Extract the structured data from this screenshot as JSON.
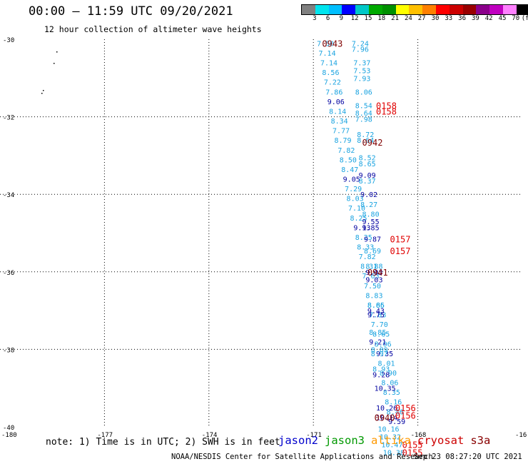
{
  "header": {
    "title": "00:00 – 11:59 UTC 09/20/2021",
    "subtitle": "12 hour collection of altimeter wave heights"
  },
  "colorbar": {
    "colors": [
      "#808080",
      "#00e5ee",
      "#00bfff",
      "#0000ff",
      "#00c8c8",
      "#00aa00",
      "#009000",
      "#ffff00",
      "#ffc000",
      "#ff8000",
      "#ff0000",
      "#cc0000",
      "#990000",
      "#8b008b",
      "#c000c0",
      "#ff80ff",
      "#000000"
    ],
    "labels": [
      "3",
      "6",
      "9",
      "12",
      "15",
      "18",
      "21",
      "24",
      "27",
      "30",
      "33",
      "36",
      "39",
      "42",
      "45",
      "70",
      "(ft)"
    ]
  },
  "footer": {
    "note": "note: 1) Time is in UTC; 2) SWH is in feet",
    "satellites": [
      {
        "name": "jason2",
        "color": "#0000cc"
      },
      {
        "name": "jason3",
        "color": "#009900"
      },
      {
        "name": "altika",
        "color": "#ff9900"
      },
      {
        "name": "cryosat",
        "color": "#cc0000"
      },
      {
        "name": "s3a",
        "color": "#880000"
      }
    ],
    "credit": "NOAA/NESDIS Center for Satellite Applications and Research",
    "timestamp": "Sep 23 08:27:20 UTC 2021"
  },
  "chart_data": {
    "type": "scatter",
    "title": "00:00 – 11:59 UTC 09/20/2021",
    "xlim": [
      -180,
      -165
    ],
    "ylim": [
      -40,
      -30
    ],
    "xticks": [
      "-180",
      "-177",
      "-174",
      "-171",
      "-168",
      "-16"
    ],
    "yticks": [
      "-30",
      "-32",
      "-34",
      "-36",
      "-38",
      "-40"
    ],
    "grid": true,
    "colors": {
      "light": "#1aa3e0",
      "dark": "#0000a0",
      "time_red": "#e00000",
      "time_dark": "#800000"
    },
    "track_a": [
      {
        "lon": -170.9,
        "lat": -30.1,
        "v": "7.50",
        "c": "light"
      },
      {
        "lon": -170.85,
        "lat": -30.35,
        "v": "7.14",
        "c": "light"
      },
      {
        "lon": -170.8,
        "lat": -30.6,
        "v": "7.14",
        "c": "light"
      },
      {
        "lon": -170.75,
        "lat": -30.85,
        "v": "8.56",
        "c": "light"
      },
      {
        "lon": -170.7,
        "lat": -31.1,
        "v": "7.22",
        "c": "light"
      },
      {
        "lon": -170.65,
        "lat": -31.35,
        "v": "7.86",
        "c": "light"
      },
      {
        "lon": -170.6,
        "lat": -31.6,
        "v": "9.06",
        "c": "dark"
      },
      {
        "lon": -170.55,
        "lat": -31.85,
        "v": "8.14",
        "c": "light"
      },
      {
        "lon": -170.5,
        "lat": -32.1,
        "v": "8.34",
        "c": "light"
      },
      {
        "lon": -170.45,
        "lat": -32.35,
        "v": "7.77",
        "c": "light"
      },
      {
        "lon": -170.4,
        "lat": -32.6,
        "v": "8.79",
        "c": "light"
      },
      {
        "lon": -170.3,
        "lat": -32.85,
        "v": "7.82",
        "c": "light"
      },
      {
        "lon": -170.25,
        "lat": -33.1,
        "v": "8.50",
        "c": "light"
      },
      {
        "lon": -170.2,
        "lat": -33.35,
        "v": "8.47",
        "c": "light"
      },
      {
        "lon": -170.15,
        "lat": -33.6,
        "v": "9.05",
        "c": "dark"
      },
      {
        "lon": -170.1,
        "lat": -33.85,
        "v": "7.29",
        "c": "light"
      },
      {
        "lon": -170.05,
        "lat": -34.1,
        "v": "8.03",
        "c": "light"
      },
      {
        "lon": -170.0,
        "lat": -34.35,
        "v": "7.10",
        "c": "light"
      },
      {
        "lon": -169.95,
        "lat": -34.6,
        "v": "8.25",
        "c": "light"
      },
      {
        "lon": -169.85,
        "lat": -34.85,
        "v": "9.13",
        "c": "dark"
      },
      {
        "lon": -169.8,
        "lat": -35.1,
        "v": "8.25",
        "c": "light"
      },
      {
        "lon": -169.75,
        "lat": -35.35,
        "v": "8.33",
        "c": "light"
      },
      {
        "lon": -169.7,
        "lat": -35.6,
        "v": "7.82",
        "c": "light"
      },
      {
        "lon": -169.65,
        "lat": -35.85,
        "v": "8.31",
        "c": "light"
      },
      {
        "lon": -169.6,
        "lat": -36.1,
        "v": "7.63",
        "c": "light"
      },
      {
        "lon": -169.55,
        "lat": -36.35,
        "v": "7.50",
        "c": "light"
      },
      {
        "lon": -169.5,
        "lat": -36.6,
        "v": "8.83",
        "c": "light"
      },
      {
        "lon": -169.45,
        "lat": -36.85,
        "v": "8.66",
        "c": "light"
      },
      {
        "lon": -169.4,
        "lat": -37.1,
        "v": "7.83",
        "c": "light"
      },
      {
        "lon": -169.35,
        "lat": -37.35,
        "v": "7.70",
        "c": "light"
      },
      {
        "lon": -169.3,
        "lat": -37.6,
        "v": "8.65",
        "c": "light"
      },
      {
        "lon": -169.25,
        "lat": -37.85,
        "v": "8.06",
        "c": "light"
      },
      {
        "lon": -169.2,
        "lat": -38.1,
        "v": "9.35",
        "c": "dark"
      },
      {
        "lon": -169.15,
        "lat": -38.35,
        "v": "8.01",
        "c": "light"
      },
      {
        "lon": -169.1,
        "lat": -38.6,
        "v": "8.90",
        "c": "light"
      },
      {
        "lon": -169.05,
        "lat": -38.85,
        "v": "8.06",
        "c": "light"
      },
      {
        "lon": -169.0,
        "lat": -39.1,
        "v": "8.35",
        "c": "light"
      },
      {
        "lon": -168.95,
        "lat": -39.35,
        "v": "8.16",
        "c": "light"
      },
      {
        "lon": -168.9,
        "lat": -39.6,
        "v": "8.46",
        "c": "light"
      },
      {
        "lon": -168.85,
        "lat": -39.85,
        "v": "9.59",
        "c": "dark"
      }
    ],
    "track_b": [
      {
        "lon": -169.9,
        "lat": -30.1,
        "v": "7.24",
        "c": "light"
      },
      {
        "lon": -169.9,
        "lat": -30.25,
        "v": "7.96",
        "c": "light"
      },
      {
        "lon": -169.85,
        "lat": -30.6,
        "v": "7.37",
        "c": "light"
      },
      {
        "lon": -169.85,
        "lat": -30.8,
        "v": "7.53",
        "c": "light"
      },
      {
        "lon": -169.85,
        "lat": -31.0,
        "v": "7.93",
        "c": "light"
      },
      {
        "lon": -169.8,
        "lat": -31.35,
        "v": "8.06",
        "c": "light"
      },
      {
        "lon": -169.8,
        "lat": -31.7,
        "v": "8.54",
        "c": "light"
      },
      {
        "lon": -169.8,
        "lat": -31.9,
        "v": "8.64",
        "c": "light"
      },
      {
        "lon": -169.8,
        "lat": -32.05,
        "v": "7.98",
        "c": "light"
      },
      {
        "lon": -169.75,
        "lat": -32.45,
        "v": "8.72",
        "c": "light"
      },
      {
        "lon": -169.75,
        "lat": -32.6,
        "v": "8.64",
        "c": "light"
      },
      {
        "lon": -169.7,
        "lat": -33.05,
        "v": "8.52",
        "c": "light"
      },
      {
        "lon": -169.7,
        "lat": -33.2,
        "v": "8.65",
        "c": "light"
      },
      {
        "lon": -169.7,
        "lat": -33.5,
        "v": "9.09",
        "c": "dark"
      },
      {
        "lon": -169.7,
        "lat": -33.65,
        "v": "8.37",
        "c": "light"
      },
      {
        "lon": -169.65,
        "lat": -34.0,
        "v": "9.02",
        "c": "dark"
      },
      {
        "lon": -169.65,
        "lat": -34.25,
        "v": "8.27",
        "c": "light"
      },
      {
        "lon": -169.6,
        "lat": -34.5,
        "v": "8.80",
        "c": "light"
      },
      {
        "lon": -169.6,
        "lat": -34.7,
        "v": "9.55",
        "c": "dark"
      },
      {
        "lon": -169.6,
        "lat": -34.85,
        "v": "9.85",
        "c": "dark"
      },
      {
        "lon": -169.55,
        "lat": -35.15,
        "v": "9.87",
        "c": "dark"
      },
      {
        "lon": -169.55,
        "lat": -35.45,
        "v": "8.69",
        "c": "light"
      },
      {
        "lon": -169.5,
        "lat": -35.85,
        "v": "8.88",
        "c": "light"
      },
      {
        "lon": -169.5,
        "lat": -36.0,
        "v": "9.03",
        "c": "dark"
      },
      {
        "lon": -169.5,
        "lat": -36.2,
        "v": "9.03",
        "c": "dark"
      },
      {
        "lon": -169.45,
        "lat": -36.85,
        "v": "8.85",
        "c": "light"
      },
      {
        "lon": -169.45,
        "lat": -37.0,
        "v": "9.43",
        "c": "dark"
      },
      {
        "lon": -169.45,
        "lat": -37.1,
        "v": "9.75",
        "c": "dark"
      },
      {
        "lon": -169.4,
        "lat": -37.55,
        "v": "8.85",
        "c": "light"
      },
      {
        "lon": -169.4,
        "lat": -37.8,
        "v": "9.21",
        "c": "dark"
      },
      {
        "lon": -169.35,
        "lat": -38.0,
        "v": "8.89",
        "c": "light"
      },
      {
        "lon": -169.35,
        "lat": -38.1,
        "v": "8.97",
        "c": "light"
      },
      {
        "lon": -169.3,
        "lat": -38.5,
        "v": "8.93",
        "c": "light"
      },
      {
        "lon": -169.3,
        "lat": -38.65,
        "v": "9.28",
        "c": "dark"
      },
      {
        "lon": -169.25,
        "lat": -39.0,
        "v": "10.35",
        "c": "dark"
      },
      {
        "lon": -169.2,
        "lat": -39.5,
        "v": "10.26",
        "c": "dark"
      },
      {
        "lon": -169.2,
        "lat": -39.75,
        "v": "10.14",
        "c": "dark"
      },
      {
        "lon": -169.15,
        "lat": -40.05,
        "v": "10.16",
        "c": "light"
      },
      {
        "lon": -169.1,
        "lat": -40.25,
        "v": "10.32",
        "c": "light"
      },
      {
        "lon": -169.05,
        "lat": -40.45,
        "v": "10.47",
        "c": "light"
      },
      {
        "lon": -169.0,
        "lat": -40.65,
        "v": "10.38",
        "c": "light"
      }
    ],
    "times": [
      {
        "lon": -170.75,
        "lat": -30.1,
        "t": "0943",
        "c": "time_dark"
      },
      {
        "lon": -169.6,
        "lat": -32.65,
        "t": "0942",
        "c": "time_dark"
      },
      {
        "lon": -169.45,
        "lat": -36.0,
        "t": "0941",
        "c": "time_dark"
      },
      {
        "lon": -169.25,
        "lat": -39.75,
        "t": "0940",
        "c": "time_dark"
      },
      {
        "lon": -169.2,
        "lat": -31.7,
        "t": "0158",
        "c": "time_red"
      },
      {
        "lon": -169.2,
        "lat": -31.85,
        "t": "0158",
        "c": "time_red"
      },
      {
        "lon": -168.8,
        "lat": -35.15,
        "t": "0157",
        "c": "time_red"
      },
      {
        "lon": -168.8,
        "lat": -35.45,
        "t": "0157",
        "c": "time_red"
      },
      {
        "lon": -168.65,
        "lat": -39.5,
        "t": "0156",
        "c": "time_red"
      },
      {
        "lon": -168.65,
        "lat": -39.7,
        "t": "0156",
        "c": "time_red"
      },
      {
        "lon": -168.45,
        "lat": -40.45,
        "t": "0155",
        "c": "time_red"
      },
      {
        "lon": -168.45,
        "lat": -40.65,
        "t": "0155",
        "c": "time_red"
      }
    ]
  }
}
